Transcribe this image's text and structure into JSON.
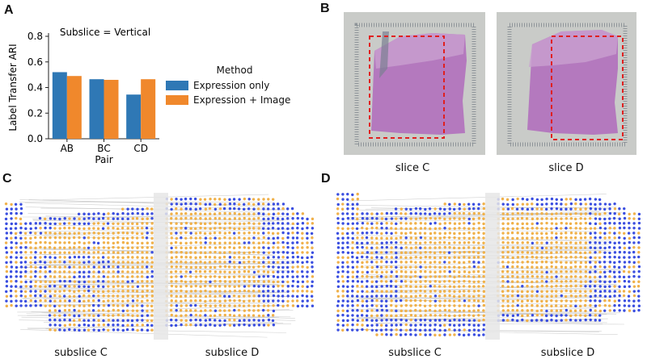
{
  "panels": {
    "a": "A",
    "b": "B",
    "c": "C",
    "d": "D"
  },
  "colors": {
    "expression_only": "#2f78b5",
    "expression_image": "#f0882c",
    "spot_blue": "#3a4ee0",
    "spot_orange": "#f0b14a",
    "hne": "#b170bd",
    "red_dash": "#e02020"
  },
  "chart_data": {
    "type": "bar",
    "title": "Subslice = Vertical",
    "ylabel": "Label Transfer ARI",
    "xlabel": "Pair",
    "categories": [
      "AB",
      "BC",
      "CD"
    ],
    "ylim": [
      0,
      0.8
    ],
    "yticks": [
      "0.0",
      "0.2",
      "0.4",
      "0.6",
      "0.8"
    ],
    "legend_title": "Method",
    "legend_placement": "right",
    "series": [
      {
        "name": "Expression only",
        "values": [
          0.52,
          0.465,
          0.345
        ]
      },
      {
        "name": "Expression + Image",
        "values": [
          0.49,
          0.46,
          0.465
        ]
      }
    ]
  },
  "images": {
    "slice_c": "slice C",
    "slice_d": "slice D"
  },
  "alignments": {
    "c_left": "subslice C",
    "c_right": "subslice D",
    "d_left": "subslice C",
    "d_right": "subslice D"
  }
}
